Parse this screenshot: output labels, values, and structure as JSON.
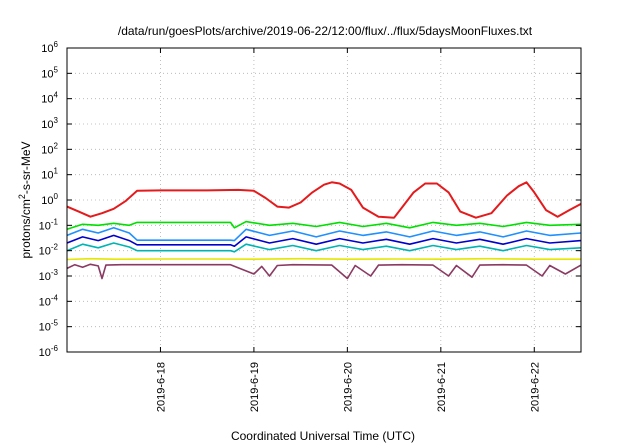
{
  "chart_data": {
    "type": "line",
    "title": "/data/run/goesPlots/archive/2019-06-22/12:00/flux/../flux/5daysMoonFluxes.txt",
    "xlabel": "Coordinated Universal Time (UTC)",
    "ylabel": "protons/cm²-s-sr-MeV",
    "ylabel_parts": {
      "pre": "protons/cm",
      "sup": "2",
      "post": "-s-sr-MeV"
    },
    "xlim": [
      "2019-06-17 00:00",
      "2019-06-22 12:00"
    ],
    "ylim": [
      1e-06,
      1000000.0
    ],
    "yscale": "log",
    "grid": true,
    "x_ticks": [
      {
        "date": "2019-06-18 00:00",
        "label": "2019-6-18"
      },
      {
        "date": "2019-06-19 00:00",
        "label": "2019-6-19"
      },
      {
        "date": "2019-06-20 00:00",
        "label": "2019-6-20"
      },
      {
        "date": "2019-06-21 00:00",
        "label": "2019-6-21"
      },
      {
        "date": "2019-06-22 00:00",
        "label": "2019-6-22"
      }
    ],
    "y_ticks": [
      {
        "value": 1e-06,
        "base": "10",
        "exp": "-6"
      },
      {
        "value": 1e-05,
        "base": "10",
        "exp": "-5"
      },
      {
        "value": 0.0001,
        "base": "10",
        "exp": "-4"
      },
      {
        "value": 0.001,
        "base": "10",
        "exp": "-3"
      },
      {
        "value": 0.01,
        "base": "10",
        "exp": "-2"
      },
      {
        "value": 0.1,
        "base": "10",
        "exp": "-1"
      },
      {
        "value": 1.0,
        "base": "10",
        "exp": "0"
      },
      {
        "value": 10.0,
        "base": "10",
        "exp": "1"
      },
      {
        "value": 100.0,
        "base": "10",
        "exp": "2"
      },
      {
        "value": 1000.0,
        "base": "10",
        "exp": "3"
      },
      {
        "value": 10000.0,
        "base": "10",
        "exp": "4"
      },
      {
        "value": 100000.0,
        "base": "10",
        "exp": "5"
      },
      {
        "value": 1000000.0,
        "base": "10",
        "exp": "6"
      }
    ],
    "series": [
      {
        "color": "#e41a1c",
        "points": [
          [
            "2019-06-17 00:00",
            0.55
          ],
          [
            "2019-06-17 03:00",
            0.35
          ],
          [
            "2019-06-17 06:00",
            0.22
          ],
          [
            "2019-06-17 09:00",
            0.3
          ],
          [
            "2019-06-17 12:00",
            0.45
          ],
          [
            "2019-06-17 15:00",
            0.9
          ],
          [
            "2019-06-17 18:00",
            2.3
          ],
          [
            "2019-06-18 00:00",
            2.4
          ],
          [
            "2019-06-18 06:00",
            2.4
          ],
          [
            "2019-06-18 12:00",
            2.4
          ],
          [
            "2019-06-18 20:00",
            2.5
          ],
          [
            "2019-06-19 00:00",
            2.3
          ],
          [
            "2019-06-19 03:00",
            1.2
          ],
          [
            "2019-06-19 06:00",
            0.55
          ],
          [
            "2019-06-19 09:00",
            0.5
          ],
          [
            "2019-06-19 12:00",
            0.8
          ],
          [
            "2019-06-19 15:00",
            2.0
          ],
          [
            "2019-06-19 18:00",
            4.0
          ],
          [
            "2019-06-19 20:00",
            5.0
          ],
          [
            "2019-06-19 22:00",
            4.5
          ],
          [
            "2019-06-20 01:00",
            2.5
          ],
          [
            "2019-06-20 04:00",
            0.5
          ],
          [
            "2019-06-20 08:00",
            0.22
          ],
          [
            "2019-06-20 12:00",
            0.2
          ],
          [
            "2019-06-20 14:00",
            0.5
          ],
          [
            "2019-06-20 17:00",
            2.0
          ],
          [
            "2019-06-20 20:00",
            4.5
          ],
          [
            "2019-06-20 23:00",
            4.5
          ],
          [
            "2019-06-21 02:00",
            2.0
          ],
          [
            "2019-06-21 05:00",
            0.35
          ],
          [
            "2019-06-21 09:00",
            0.2
          ],
          [
            "2019-06-21 13:00",
            0.3
          ],
          [
            "2019-06-21 17:00",
            1.5
          ],
          [
            "2019-06-21 20:00",
            3.5
          ],
          [
            "2019-06-21 22:00",
            5.0
          ],
          [
            "2019-06-22 00:00",
            2.0
          ],
          [
            "2019-06-22 03:00",
            0.4
          ],
          [
            "2019-06-22 06:00",
            0.22
          ],
          [
            "2019-06-22 09:00",
            0.4
          ],
          [
            "2019-06-22 12:00",
            0.7
          ]
        ]
      },
      {
        "color": "#00e000",
        "points": [
          [
            "2019-06-17 00:00",
            0.07
          ],
          [
            "2019-06-17 04:00",
            0.11
          ],
          [
            "2019-06-17 08:00",
            0.1
          ],
          [
            "2019-06-17 12:00",
            0.12
          ],
          [
            "2019-06-17 16:00",
            0.1
          ],
          [
            "2019-06-17 18:00",
            0.13
          ],
          [
            "2019-06-18 06:00",
            0.13
          ],
          [
            "2019-06-18 18:00",
            0.13
          ],
          [
            "2019-06-18 19:00",
            0.08
          ],
          [
            "2019-06-18 22:00",
            0.14
          ],
          [
            "2019-06-19 04:00",
            0.1
          ],
          [
            "2019-06-19 10:00",
            0.12
          ],
          [
            "2019-06-19 16:00",
            0.09
          ],
          [
            "2019-06-19 22:00",
            0.13
          ],
          [
            "2019-06-20 04:00",
            0.09
          ],
          [
            "2019-06-20 10:00",
            0.12
          ],
          [
            "2019-06-20 16:00",
            0.08
          ],
          [
            "2019-06-20 22:00",
            0.13
          ],
          [
            "2019-06-21 04:00",
            0.1
          ],
          [
            "2019-06-21 10:00",
            0.12
          ],
          [
            "2019-06-21 16:00",
            0.09
          ],
          [
            "2019-06-21 22:00",
            0.13
          ],
          [
            "2019-06-22 04:00",
            0.1
          ],
          [
            "2019-06-22 12:00",
            0.11
          ]
        ]
      },
      {
        "color": "#1e90ff",
        "points": [
          [
            "2019-06-17 00:00",
            0.04
          ],
          [
            "2019-06-17 04:00",
            0.07
          ],
          [
            "2019-06-17 08:00",
            0.05
          ],
          [
            "2019-06-17 12:00",
            0.08
          ],
          [
            "2019-06-17 16:00",
            0.05
          ],
          [
            "2019-06-17 18:00",
            0.026
          ],
          [
            "2019-06-18 06:00",
            0.026
          ],
          [
            "2019-06-18 18:00",
            0.026
          ],
          [
            "2019-06-18 19:00",
            0.025
          ],
          [
            "2019-06-18 22:00",
            0.07
          ],
          [
            "2019-06-19 04:00",
            0.04
          ],
          [
            "2019-06-19 10:00",
            0.06
          ],
          [
            "2019-06-19 16:00",
            0.035
          ],
          [
            "2019-06-19 22:00",
            0.06
          ],
          [
            "2019-06-20 04:00",
            0.04
          ],
          [
            "2019-06-20 10:00",
            0.055
          ],
          [
            "2019-06-20 16:00",
            0.035
          ],
          [
            "2019-06-20 22:00",
            0.06
          ],
          [
            "2019-06-21 04:00",
            0.04
          ],
          [
            "2019-06-21 10:00",
            0.055
          ],
          [
            "2019-06-21 16:00",
            0.035
          ],
          [
            "2019-06-21 22:00",
            0.06
          ],
          [
            "2019-06-22 04:00",
            0.04
          ],
          [
            "2019-06-22 12:00",
            0.05
          ]
        ]
      },
      {
        "color": "#0000cd",
        "points": [
          [
            "2019-06-17 00:00",
            0.02
          ],
          [
            "2019-06-17 04:00",
            0.035
          ],
          [
            "2019-06-17 08:00",
            0.025
          ],
          [
            "2019-06-17 12:00",
            0.04
          ],
          [
            "2019-06-17 16:00",
            0.025
          ],
          [
            "2019-06-17 18:00",
            0.017
          ],
          [
            "2019-06-18 06:00",
            0.017
          ],
          [
            "2019-06-18 18:00",
            0.017
          ],
          [
            "2019-06-18 19:00",
            0.015
          ],
          [
            "2019-06-18 22:00",
            0.035
          ],
          [
            "2019-06-19 04:00",
            0.02
          ],
          [
            "2019-06-19 10:00",
            0.03
          ],
          [
            "2019-06-19 16:00",
            0.018
          ],
          [
            "2019-06-19 22:00",
            0.03
          ],
          [
            "2019-06-20 04:00",
            0.02
          ],
          [
            "2019-06-20 10:00",
            0.028
          ],
          [
            "2019-06-20 16:00",
            0.018
          ],
          [
            "2019-06-20 22:00",
            0.03
          ],
          [
            "2019-06-21 04:00",
            0.02
          ],
          [
            "2019-06-21 10:00",
            0.028
          ],
          [
            "2019-06-21 16:00",
            0.018
          ],
          [
            "2019-06-21 22:00",
            0.03
          ],
          [
            "2019-06-22 04:00",
            0.02
          ],
          [
            "2019-06-22 12:00",
            0.025
          ]
        ]
      },
      {
        "color": "#00b4b4",
        "points": [
          [
            "2019-06-17 00:00",
            0.01
          ],
          [
            "2019-06-17 04:00",
            0.018
          ],
          [
            "2019-06-17 08:00",
            0.013
          ],
          [
            "2019-06-17 12:00",
            0.02
          ],
          [
            "2019-06-17 16:00",
            0.014
          ],
          [
            "2019-06-17 18:00",
            0.01
          ],
          [
            "2019-06-18 06:00",
            0.01
          ],
          [
            "2019-06-18 18:00",
            0.01
          ],
          [
            "2019-06-18 19:00",
            0.009
          ],
          [
            "2019-06-18 22:00",
            0.018
          ],
          [
            "2019-06-19 04:00",
            0.011
          ],
          [
            "2019-06-19 10:00",
            0.016
          ],
          [
            "2019-06-19 16:00",
            0.01
          ],
          [
            "2019-06-19 22:00",
            0.016
          ],
          [
            "2019-06-20 04:00",
            0.011
          ],
          [
            "2019-06-20 10:00",
            0.015
          ],
          [
            "2019-06-20 16:00",
            0.01
          ],
          [
            "2019-06-20 22:00",
            0.016
          ],
          [
            "2019-06-21 04:00",
            0.011
          ],
          [
            "2019-06-21 10:00",
            0.015
          ],
          [
            "2019-06-21 16:00",
            0.01
          ],
          [
            "2019-06-21 22:00",
            0.016
          ],
          [
            "2019-06-22 04:00",
            0.011
          ],
          [
            "2019-06-22 12:00",
            0.013
          ]
        ]
      },
      {
        "color": "#e6e600",
        "points": [
          [
            "2019-06-17 00:00",
            0.0045
          ],
          [
            "2019-06-17 06:00",
            0.0048
          ],
          [
            "2019-06-17 12:00",
            0.0046
          ],
          [
            "2019-06-18 00:00",
            0.0047
          ],
          [
            "2019-06-18 12:00",
            0.0047
          ],
          [
            "2019-06-19 00:00",
            0.0046
          ],
          [
            "2019-06-19 12:00",
            0.0048
          ],
          [
            "2019-06-20 00:00",
            0.0046
          ],
          [
            "2019-06-20 12:00",
            0.0047
          ],
          [
            "2019-06-21 00:00",
            0.0046
          ],
          [
            "2019-06-21 12:00",
            0.0048
          ],
          [
            "2019-06-22 00:00",
            0.0046
          ],
          [
            "2019-06-22 12:00",
            0.0046
          ]
        ]
      },
      {
        "color": "#8b3a62",
        "points": [
          [
            "2019-06-17 00:00",
            0.002
          ],
          [
            "2019-06-17 02:00",
            0.0028
          ],
          [
            "2019-06-17 04:00",
            0.0022
          ],
          [
            "2019-06-17 06:00",
            0.0029
          ],
          [
            "2019-06-17 08:00",
            0.0025
          ],
          [
            "2019-06-17 09:00",
            0.0008
          ],
          [
            "2019-06-17 10:00",
            0.0027
          ],
          [
            "2019-06-17 14:00",
            0.0028
          ],
          [
            "2019-06-18 00:00",
            0.0028
          ],
          [
            "2019-06-18 18:00",
            0.0028
          ],
          [
            "2019-06-19 00:00",
            0.0012
          ],
          [
            "2019-06-19 02:00",
            0.0024
          ],
          [
            "2019-06-19 04:00",
            0.001
          ],
          [
            "2019-06-19 06:00",
            0.0026
          ],
          [
            "2019-06-19 10:00",
            0.0028
          ],
          [
            "2019-06-19 20:00",
            0.0027
          ],
          [
            "2019-06-20 00:00",
            0.0008
          ],
          [
            "2019-06-20 02:00",
            0.0026
          ],
          [
            "2019-06-20 06:00",
            0.001
          ],
          [
            "2019-06-20 08:00",
            0.0027
          ],
          [
            "2019-06-20 14:00",
            0.0028
          ],
          [
            "2019-06-20 22:00",
            0.0027
          ],
          [
            "2019-06-21 02:00",
            0.001
          ],
          [
            "2019-06-21 04:00",
            0.0026
          ],
          [
            "2019-06-21 08:00",
            0.0009
          ],
          [
            "2019-06-21 10:00",
            0.0027
          ],
          [
            "2019-06-21 16:00",
            0.0028
          ],
          [
            "2019-06-21 22:00",
            0.0027
          ],
          [
            "2019-06-22 02:00",
            0.001
          ],
          [
            "2019-06-22 04:00",
            0.0026
          ],
          [
            "2019-06-22 08:00",
            0.0012
          ],
          [
            "2019-06-22 12:00",
            0.0027
          ]
        ]
      }
    ]
  }
}
